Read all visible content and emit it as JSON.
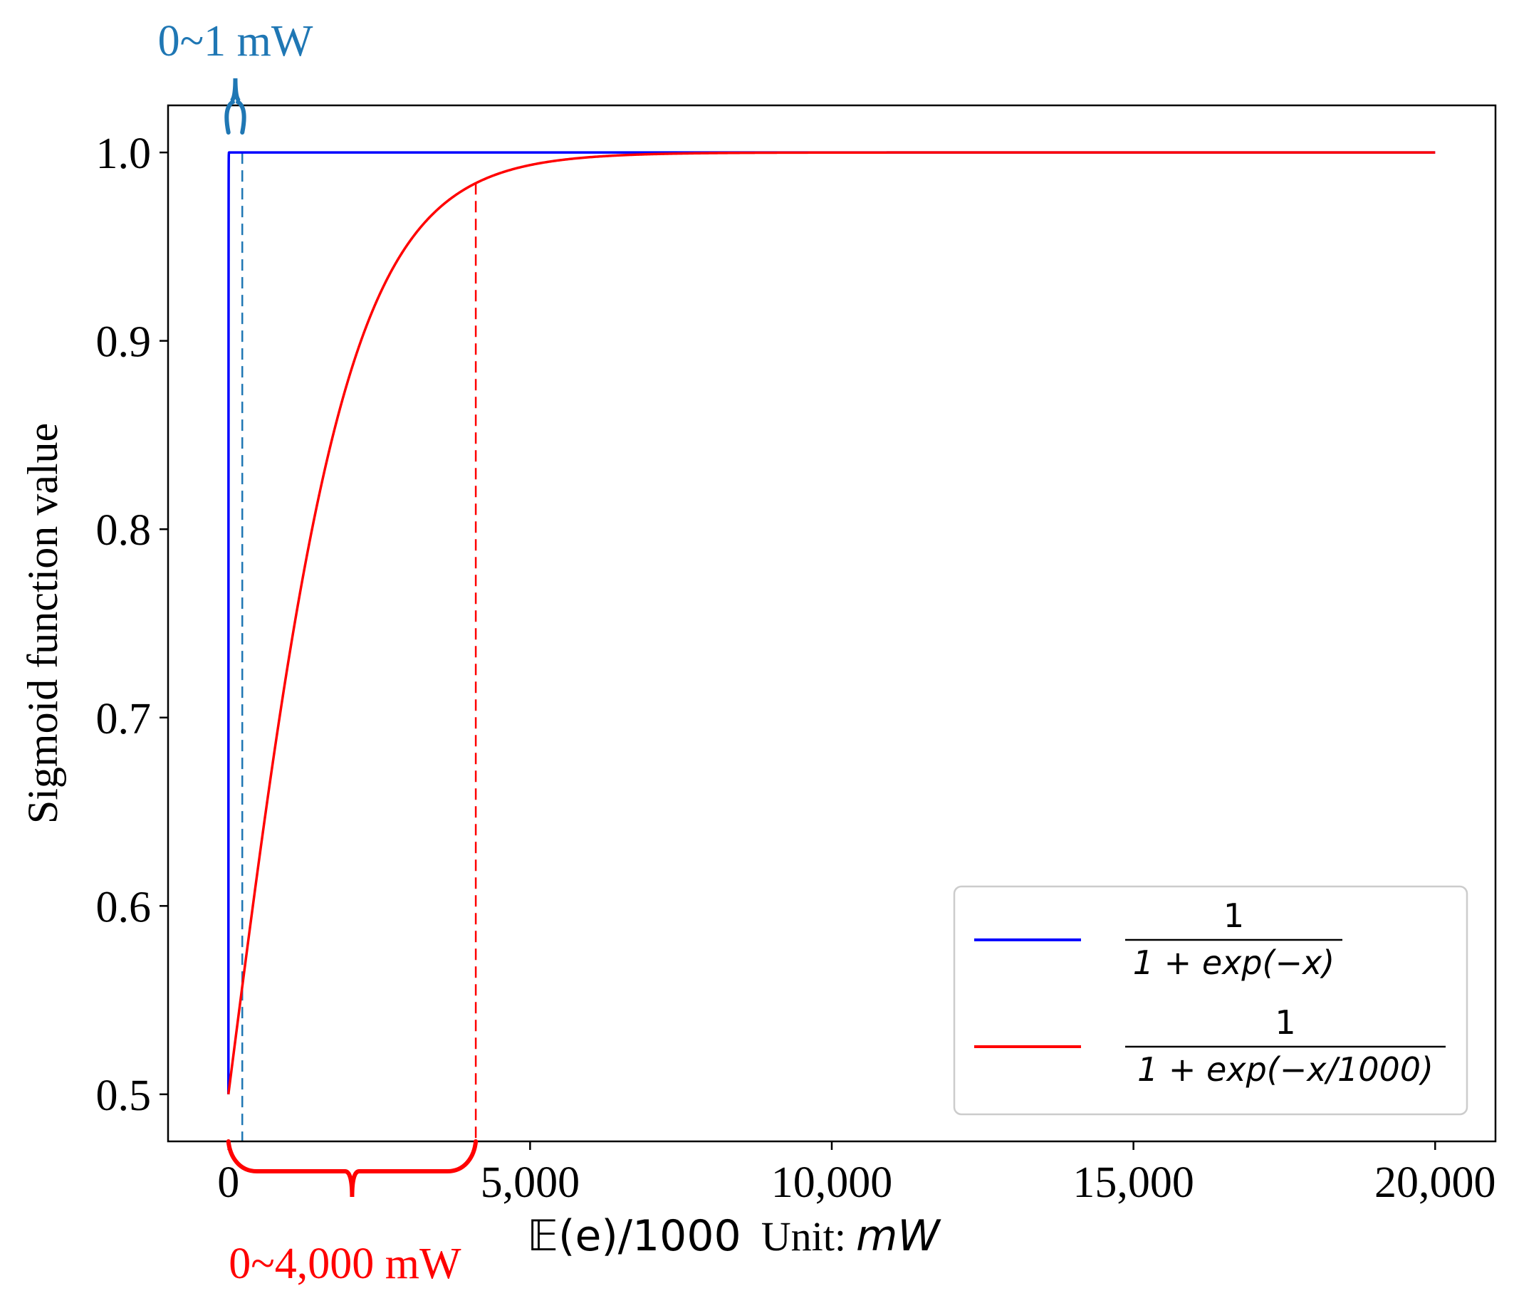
{
  "chart_data": {
    "type": "line",
    "title": "",
    "ylabel": "Sigmoid function value",
    "xlabel": {
      "math": "𝔼(e)/1000",
      "unit_prefix": "Unit:",
      "unit": "mW"
    },
    "xlim": [
      -1000,
      21000
    ],
    "ylim": [
      0.475,
      1.025
    ],
    "x_ticks": [
      0,
      5000,
      10000,
      15000,
      20000
    ],
    "x_tick_labels": [
      "0",
      "5,000",
      "10,000",
      "15,000",
      "20,000"
    ],
    "y_ticks": [
      0.5,
      0.6,
      0.7,
      0.8,
      0.9,
      1.0
    ],
    "y_tick_labels": [
      "0.5",
      "0.6",
      "0.7",
      "0.8",
      "0.9",
      "1.0"
    ],
    "x_range": [
      0,
      20000
    ],
    "series": [
      {
        "name": "1/(1+exp(-x))",
        "color": "#0000ff",
        "scale": 1,
        "legend": {
          "numerator": "1",
          "denominator": "1 + exp(−x)"
        }
      },
      {
        "name": "1/(1+exp(-x/1000))",
        "color": "#ff0000",
        "scale": 1000,
        "legend": {
          "numerator": "1",
          "denominator": "1 + exp(−x/1000)"
        }
      }
    ],
    "reference_lines": [
      {
        "x": 230,
        "color": "#1f77b4",
        "style": "dashed"
      },
      {
        "x": 4100,
        "color": "#ff0000",
        "style": "dashed"
      }
    ],
    "annotations": [
      {
        "text": "0~1 mW",
        "color": "#1f77b4",
        "range": [
          0,
          230
        ],
        "position": "above"
      },
      {
        "text": "0~4,000 mW",
        "color": "#ff0000",
        "range": [
          0,
          4100
        ],
        "position": "below"
      }
    ],
    "legend_position": "lower-right",
    "grid": false
  }
}
